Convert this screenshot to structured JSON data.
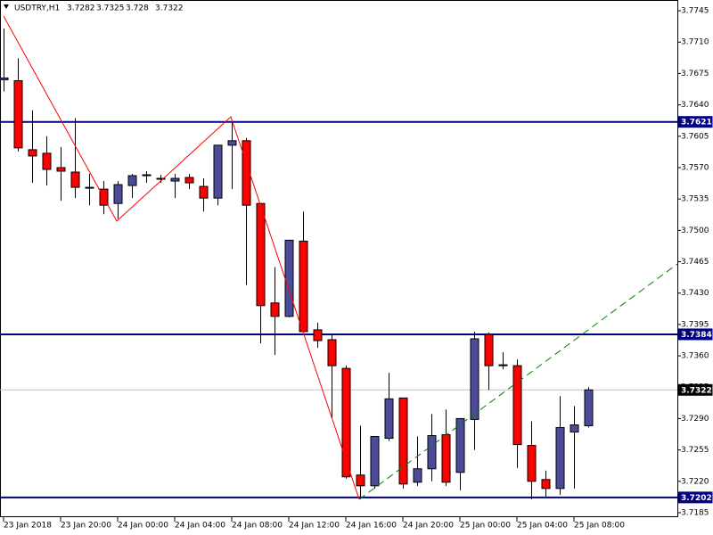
{
  "chart_data": {
    "type": "candlestick",
    "title": "USDTRY,H1",
    "categories": [
      "23 Jan 2018",
      null,
      null,
      null,
      "23 Jan 20:00",
      null,
      null,
      null,
      "24 Jan 00:00",
      null,
      null,
      null,
      "24 Jan 04:00",
      null,
      null,
      null,
      "24 Jan 08:00",
      null,
      null,
      null,
      "24 Jan 12:00",
      null,
      null,
      null,
      "24 Jan 16:00",
      null,
      null,
      null,
      "24 Jan 20:00",
      null,
      null,
      null,
      "25 Jan 00:00",
      null,
      null,
      null,
      "25 Jan 04:00",
      null,
      null,
      null,
      "25 Jan 08:00",
      null
    ],
    "open": [
      3.7668,
      3.7667,
      3.759,
      3.7586,
      3.757,
      3.7565,
      3.7548,
      3.7546,
      3.753,
      3.755,
      3.7561,
      3.7558,
      3.7555,
      3.7559,
      3.7549,
      3.7536,
      3.7595,
      3.76,
      3.753,
      3.7419,
      3.7404,
      3.7488,
      3.7389,
      3.7378,
      3.7346,
      3.7227,
      3.7215,
      3.7268,
      3.7313,
      3.7219,
      3.7234,
      3.7272,
      3.723,
      3.7289,
      3.7384,
      3.735,
      3.7349,
      3.726,
      3.7222,
      3.7212,
      3.7275,
      3.7282
    ],
    "high": [
      3.7725,
      3.7692,
      3.7634,
      3.7605,
      3.7593,
      3.7625,
      3.7563,
      3.7555,
      3.7555,
      3.7563,
      3.7566,
      3.7562,
      3.7563,
      3.7563,
      3.7558,
      3.7595,
      3.7621,
      3.7603,
      3.753,
      3.7459,
      3.7489,
      3.7521,
      3.7397,
      3.7384,
      3.7349,
      3.7282,
      3.727,
      3.7341,
      3.7313,
      3.727,
      3.7295,
      3.73,
      3.729,
      3.7387,
      3.7386,
      3.7364,
      3.7356,
      3.7287,
      3.7232,
      3.7315,
      3.7304,
      3.7325
    ],
    "low": [
      3.7655,
      3.7588,
      3.7553,
      3.755,
      3.7533,
      3.7536,
      3.7528,
      3.7518,
      3.7513,
      3.7536,
      3.7553,
      3.7553,
      3.7536,
      3.7546,
      3.7521,
      3.7528,
      3.7546,
      3.7439,
      3.7374,
      3.7361,
      3.7403,
      3.7387,
      3.7369,
      3.729,
      3.7223,
      3.72,
      3.7212,
      3.7265,
      3.7212,
      3.7215,
      3.722,
      3.7215,
      3.721,
      3.7255,
      3.7322,
      3.7345,
      3.7235,
      3.72,
      3.7203,
      3.7205,
      3.7212,
      3.728
    ],
    "close": [
      3.767,
      3.7592,
      3.7583,
      3.7568,
      3.7566,
      3.7548,
      3.7547,
      3.7528,
      3.7551,
      3.7561,
      3.7562,
      3.7558,
      3.7558,
      3.7553,
      3.7536,
      3.7595,
      3.76,
      3.7528,
      3.7416,
      3.7404,
      3.7489,
      3.7387,
      3.7377,
      3.7349,
      3.7225,
      3.7215,
      3.727,
      3.7312,
      3.7217,
      3.7234,
      3.7271,
      3.7219,
      3.729,
      3.7379,
      3.7349,
      3.735,
      3.7261,
      3.722,
      3.7212,
      3.728,
      3.7283,
      3.7322
    ],
    "up_color": "#4b4b9b",
    "down_color": "#ff0000",
    "ylim": [
      3.718,
      3.7757
    ],
    "yticks": [
      3.7745,
      {
        "value": 3.771,
        "label": "3.7710"
      },
      3.7675,
      {
        "value": 3.764,
        "label": "3.7640"
      },
      3.7605,
      {
        "value": 3.757,
        "label": "3.7570"
      },
      3.7535,
      {
        "value": 3.75,
        "label": "3.7500"
      },
      3.7465,
      {
        "value": 3.743,
        "label": "3.7430"
      },
      3.7395,
      {
        "value": 3.736,
        "label": "3.7360"
      },
      3.7325,
      {
        "value": 3.729,
        "label": "3.7290"
      },
      3.7255,
      {
        "value": 3.722,
        "label": "3.7220"
      },
      3.7185
    ],
    "levels": [
      {
        "value": 3.7621,
        "color": "#000080"
      },
      {
        "value": 3.7384,
        "color": "#000080"
      },
      {
        "value": 3.7202,
        "color": "#000080"
      }
    ],
    "bid": {
      "value": 3.7322,
      "color": "#c0c0c0"
    }
  }
}
